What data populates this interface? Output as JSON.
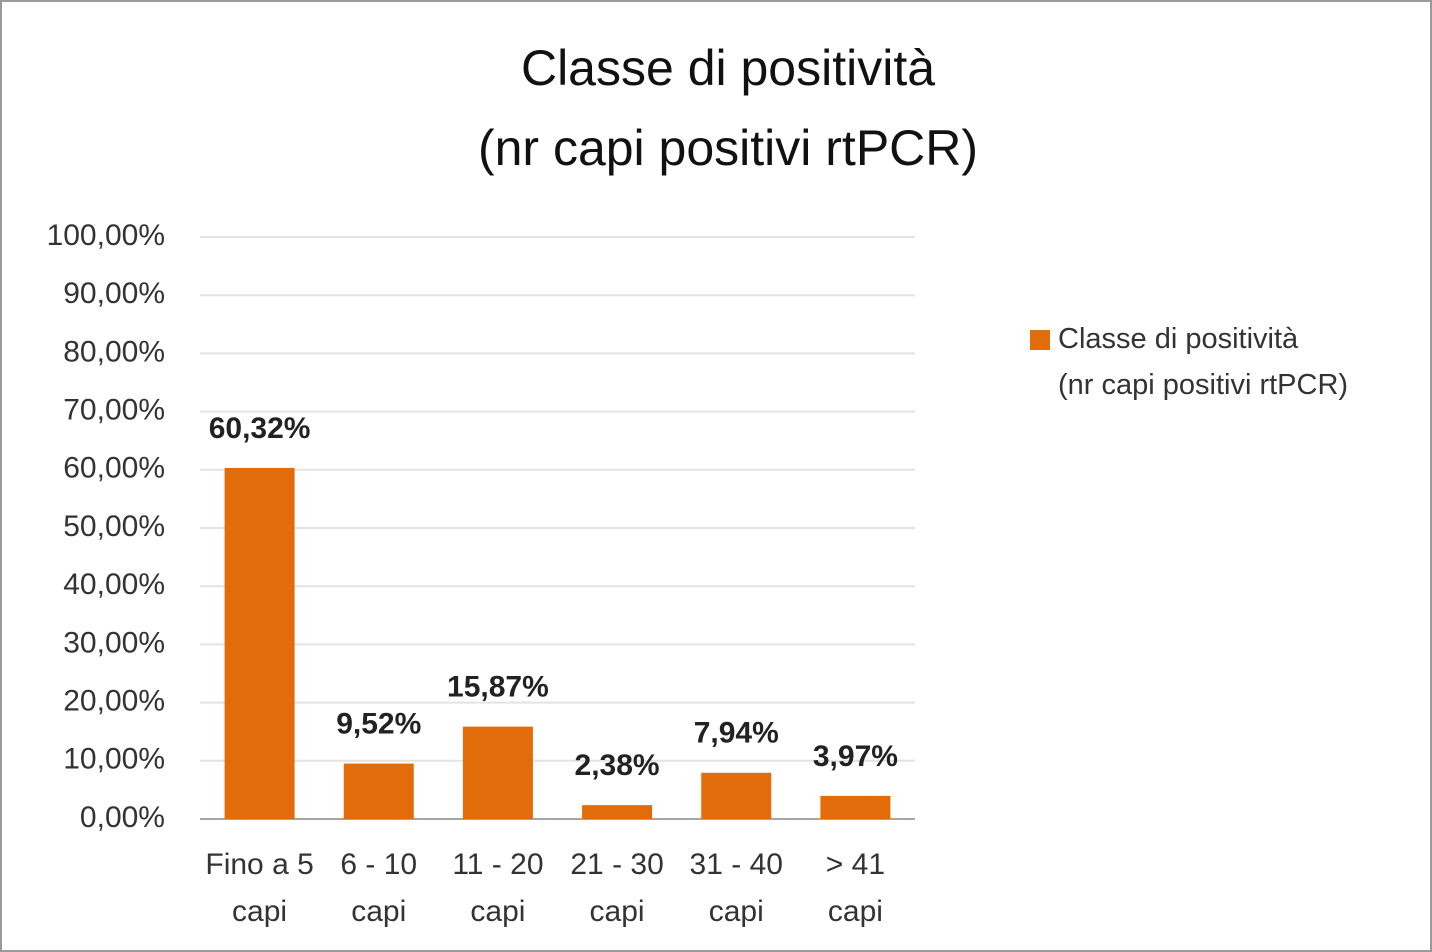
{
  "chart_data": {
    "type": "bar",
    "title": [
      "Classe di positività",
      "(nr capi positivi rtPCR)"
    ],
    "categories": [
      "Fino a 5 capi",
      "6 - 10 capi",
      "11 - 20 capi",
      "21 - 30 capi",
      "31 - 40 capi",
      "> 41 capi"
    ],
    "series": [
      {
        "name": "Classe di positività (nr capi positivi rtPCR)",
        "color": "#e36c0a",
        "values": [
          60.32,
          9.52,
          15.87,
          2.38,
          7.94,
          3.97
        ],
        "value_labels": [
          "60,32%",
          "9,52%",
          "15,87%",
          "2,38%",
          "7,94%",
          "3,97%"
        ]
      }
    ],
    "ylim": [
      0,
      100
    ],
    "yticks": [
      {
        "value": 0,
        "label": "0,00%"
      },
      {
        "value": 10,
        "label": "10,00%"
      },
      {
        "value": 20,
        "label": "20,00%"
      },
      {
        "value": 30,
        "label": "30,00%"
      },
      {
        "value": 40,
        "label": "40,00%"
      },
      {
        "value": 50,
        "label": "50,00%"
      },
      {
        "value": 60,
        "label": "60,00%"
      },
      {
        "value": 70,
        "label": "70,00%"
      },
      {
        "value": 80,
        "label": "80,00%"
      },
      {
        "value": 90,
        "label": "90,00%"
      },
      {
        "value": 100,
        "label": "100,00%"
      }
    ],
    "grid": true,
    "legend": "right"
  }
}
